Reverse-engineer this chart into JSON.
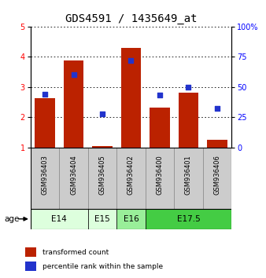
{
  "title": "GDS4591 / 1435649_at",
  "samples": [
    "GSM936403",
    "GSM936404",
    "GSM936405",
    "GSM936402",
    "GSM936400",
    "GSM936401",
    "GSM936406"
  ],
  "transformed_count": [
    2.63,
    3.87,
    1.05,
    4.28,
    2.32,
    2.8,
    1.25
  ],
  "percentile_rank": [
    44,
    60,
    28,
    72,
    43,
    50,
    32
  ],
  "ylim_left": [
    1,
    5
  ],
  "ylim_right": [
    0,
    100
  ],
  "yticks_left": [
    1,
    2,
    3,
    4,
    5
  ],
  "yticks_right": [
    0,
    25,
    50,
    75,
    100
  ],
  "bar_color": "#bb2200",
  "dot_color": "#2233cc",
  "age_groups": [
    {
      "label": "E14",
      "samples": [
        0,
        1
      ],
      "color": "#ddffdd"
    },
    {
      "label": "E15",
      "samples": [
        2
      ],
      "color": "#ddffdd"
    },
    {
      "label": "E16",
      "samples": [
        3
      ],
      "color": "#99ee99"
    },
    {
      "label": "E17.5",
      "samples": [
        4,
        5,
        6
      ],
      "color": "#44cc44"
    }
  ],
  "age_label": "age",
  "sample_box_color": "#cccccc",
  "sample_box_edge": "#888888",
  "legend_items": [
    {
      "label": "transformed count",
      "color": "#bb2200"
    },
    {
      "label": "percentile rank within the sample",
      "color": "#2233cc"
    }
  ],
  "title_fontsize": 10,
  "tick_fontsize": 7,
  "sample_fontsize": 6,
  "age_fontsize": 7.5,
  "legend_fontsize": 6.5
}
